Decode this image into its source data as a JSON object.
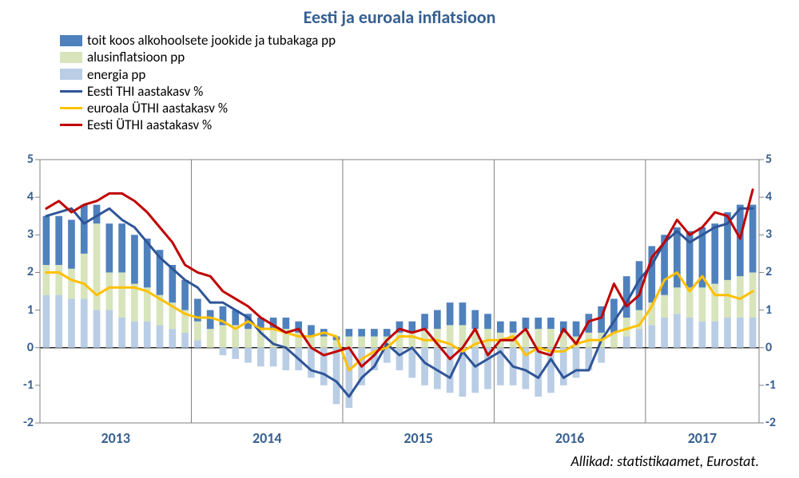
{
  "title": "Eesti ja euroala inflatsioon",
  "source": "Allikad: statistikaamet, Eurostat.",
  "legend": {
    "food": "toit koos alkohoolsete jookide ja tubakaga pp",
    "core": "alusinflatsioon pp",
    "energy": "energia pp",
    "thi": "Eesti THI aastakasv %",
    "euro": "euroala ÜTHI aastakasv %",
    "uthi": "Eesti ÜTHI aastakasv %"
  },
  "colors": {
    "food": "#4f81bd",
    "core": "#d7e4bc",
    "energy": "#b9cde5",
    "thi": "#2f5597",
    "euro": "#ffc000",
    "uthi": "#c00000",
    "axis": "#808080",
    "gridline": "#808080",
    "vline": "#808080",
    "ylabel": "#365f91",
    "title": "#365f91",
    "bg": "#ffffff"
  },
  "chart": {
    "type": "stacked-bar-with-lines",
    "ylim": [
      -2,
      5
    ],
    "ytick_step": 1,
    "yticks": [
      -2,
      -1,
      0,
      1,
      2,
      3,
      4,
      5
    ],
    "years": [
      "2013",
      "2014",
      "2015",
      "2016",
      "2017"
    ],
    "year_boundaries": [
      12,
      24,
      36,
      48
    ],
    "n_periods": 57,
    "bar_width": 0.55,
    "line_width": 3,
    "energy": [
      1.4,
      1.4,
      1.3,
      1.3,
      1.0,
      1.0,
      0.8,
      0.7,
      0.7,
      0.6,
      0.5,
      0.4,
      0.2,
      0.0,
      -0.2,
      -0.3,
      -0.4,
      -0.5,
      -0.5,
      -0.6,
      -0.6,
      -0.8,
      -1.0,
      -1.5,
      -1.6,
      -1.0,
      -0.6,
      -0.4,
      -0.6,
      -0.8,
      -1.0,
      -1.1,
      -1.2,
      -1.3,
      -1.2,
      -1.1,
      -1.0,
      -1.0,
      -1.1,
      -1.3,
      -1.2,
      -1.0,
      -0.8,
      -0.6,
      -0.4,
      0.0,
      0.3,
      0.5,
      0.6,
      0.8,
      0.9,
      0.8,
      0.7,
      0.7,
      0.8,
      0.8,
      0.8
    ],
    "core": [
      0.8,
      0.8,
      0.8,
      1.2,
      2.3,
      1.0,
      1.2,
      1.0,
      0.9,
      0.8,
      0.7,
      0.6,
      0.5,
      0.5,
      0.6,
      0.6,
      0.5,
      0.5,
      0.5,
      0.5,
      0.4,
      0.3,
      0.3,
      0.2,
      0.3,
      0.3,
      0.3,
      0.3,
      0.4,
      0.4,
      0.5,
      0.5,
      0.6,
      0.6,
      0.5,
      0.5,
      0.4,
      0.4,
      0.5,
      0.5,
      0.5,
      0.4,
      0.3,
      0.4,
      0.4,
      0.4,
      0.5,
      0.5,
      0.6,
      0.6,
      0.7,
      0.8,
      0.9,
      1.0,
      1.0,
      1.1,
      1.2
    ],
    "food": [
      1.3,
      1.3,
      1.3,
      1.3,
      0.5,
      1.3,
      1.3,
      1.3,
      1.3,
      1.2,
      1.0,
      0.8,
      0.6,
      0.5,
      0.5,
      0.4,
      0.4,
      0.3,
      0.3,
      0.3,
      0.3,
      0.3,
      0.2,
      0.1,
      0.2,
      0.2,
      0.2,
      0.2,
      0.3,
      0.3,
      0.4,
      0.5,
      0.6,
      0.6,
      0.5,
      0.4,
      0.3,
      0.3,
      0.3,
      0.3,
      0.3,
      0.3,
      0.4,
      0.5,
      0.7,
      0.9,
      1.1,
      1.3,
      1.5,
      1.6,
      1.6,
      1.5,
      1.6,
      1.6,
      1.8,
      1.9,
      1.8
    ],
    "thi": [
      3.5,
      3.6,
      3.7,
      3.3,
      3.5,
      3.7,
      3.4,
      3.2,
      2.8,
      2.4,
      2.1,
      1.8,
      1.6,
      1.2,
      1.2,
      1.0,
      0.8,
      0.4,
      0.1,
      0.0,
      -0.3,
      -0.6,
      -0.7,
      -0.9,
      -1.3,
      -0.8,
      -0.5,
      0.1,
      -0.2,
      0.0,
      -0.4,
      -0.6,
      -0.8,
      -0.1,
      -0.5,
      -0.3,
      -0.1,
      -0.5,
      -0.6,
      -0.8,
      -0.3,
      -0.8,
      -0.6,
      -0.6,
      0.2,
      0.7,
      1.2,
      1.8,
      2.2,
      2.8,
      3.1,
      2.8,
      3.0,
      3.2,
      3.3,
      3.7,
      3.7
    ],
    "euro": [
      2.0,
      2.0,
      1.8,
      1.7,
      1.4,
      1.6,
      1.6,
      1.6,
      1.5,
      1.3,
      1.1,
      0.9,
      0.8,
      0.8,
      0.7,
      0.5,
      0.7,
      0.5,
      0.5,
      0.4,
      0.3,
      0.3,
      0.4,
      0.3,
      -0.6,
      -0.3,
      -0.1,
      0.0,
      0.3,
      0.3,
      0.2,
      0.2,
      0.1,
      -0.1,
      0.1,
      0.2,
      0.2,
      0.3,
      -0.2,
      0.0,
      -0.1,
      -0.1,
      0.1,
      0.2,
      0.2,
      0.4,
      0.5,
      0.6,
      1.1,
      1.8,
      2.0,
      1.5,
      1.9,
      1.4,
      1.4,
      1.3,
      1.5
    ],
    "uthi": [
      3.7,
      3.9,
      3.6,
      3.8,
      3.9,
      4.1,
      4.1,
      3.9,
      3.6,
      3.2,
      2.8,
      2.2,
      2.0,
      1.9,
      1.5,
      1.3,
      1.1,
      0.8,
      0.6,
      0.4,
      0.5,
      0.0,
      -0.2,
      -0.1,
      0.0,
      -0.5,
      -0.2,
      0.2,
      0.5,
      0.4,
      0.5,
      0.1,
      -0.3,
      0.0,
      0.5,
      -0.2,
      0.2,
      0.2,
      0.5,
      -0.1,
      -0.2,
      0.5,
      0.1,
      0.7,
      0.8,
      1.7,
      1.1,
      1.4,
      2.4,
      2.8,
      3.4,
      3.0,
      3.2,
      3.6,
      3.5,
      2.9,
      4.2
    ]
  }
}
